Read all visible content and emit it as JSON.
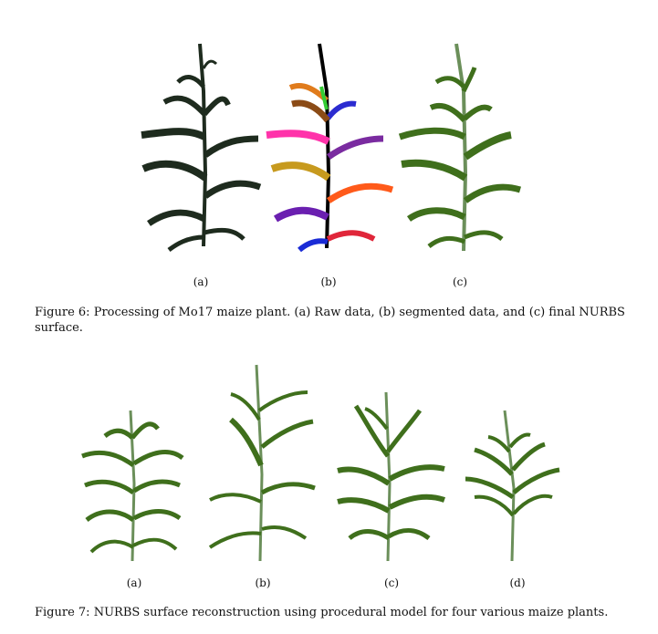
{
  "figure6": {
    "panels": [
      {
        "label": "(a)",
        "variant": "raw"
      },
      {
        "label": "(b)",
        "variant": "segmented"
      },
      {
        "label": "(c)",
        "variant": "nurbs"
      }
    ],
    "caption": "Figure 6: Processing of Mo17 maize plant. (a) Raw data, (b) segmented data, and (c) final NURBS surface."
  },
  "figure7": {
    "panels": [
      {
        "label": "(a)"
      },
      {
        "label": "(b)"
      },
      {
        "label": "(c)"
      },
      {
        "label": "(d)"
      }
    ],
    "caption": "Figure 7: NURBS surface reconstruction using procedural model for four various maize plants."
  },
  "colors": {
    "raw_leaf": "#1e2b1e",
    "nurbs_leaf": "#3f6f1c",
    "stalk": "#6b8f5a",
    "segment_colors": [
      "#ff33aa",
      "#e07b1c",
      "#8b4b16",
      "#c79a1e",
      "#6a1fb0",
      "#1a2bd6",
      "#ff5a1a",
      "#e0263a",
      "#2b2bd0",
      "#33cc33",
      "#7a2ba0"
    ]
  }
}
